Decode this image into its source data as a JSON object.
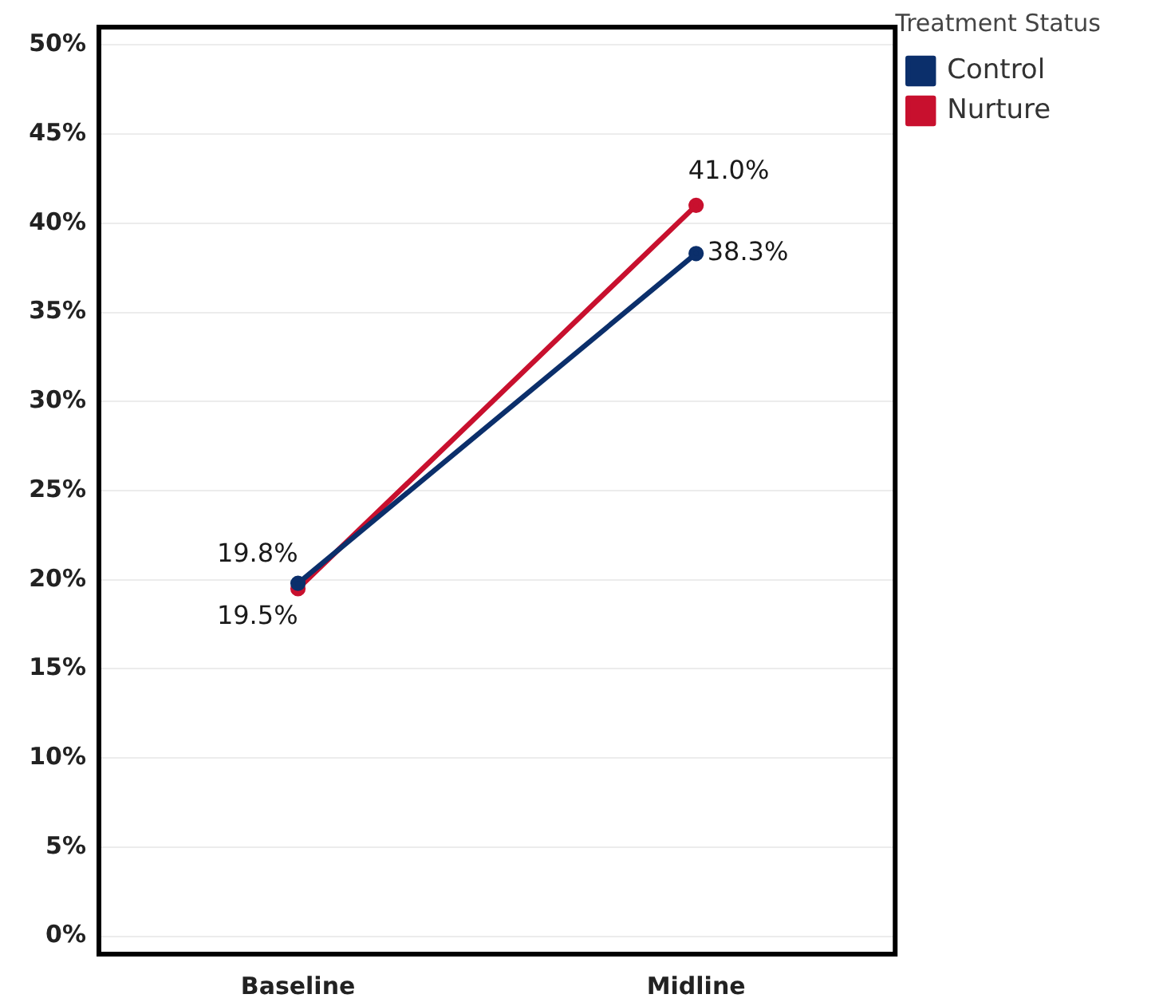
{
  "chart_data": {
    "type": "line",
    "legend_title": "Treatment Status",
    "categories": [
      "Baseline",
      "Midline"
    ],
    "series": [
      {
        "name": "Control",
        "color": "#0b2f6b",
        "values": [
          19.8,
          38.3
        ],
        "value_labels": [
          "19.8%",
          "38.3%"
        ]
      },
      {
        "name": "Nurture",
        "color": "#c8102e",
        "values": [
          19.5,
          41.0
        ],
        "value_labels": [
          "19.5%",
          "41.0%"
        ]
      }
    ],
    "ylim": [
      -1,
      51
    ],
    "yticks": [
      {
        "value": 0,
        "label": "0%"
      },
      {
        "value": 5,
        "label": "5%"
      },
      {
        "value": 10,
        "label": "10%"
      },
      {
        "value": 15,
        "label": "15%"
      },
      {
        "value": 20,
        "label": "20%"
      },
      {
        "value": 25,
        "label": "25%"
      },
      {
        "value": 30,
        "label": "30%"
      },
      {
        "value": 35,
        "label": "35%"
      },
      {
        "value": 40,
        "label": "40%"
      },
      {
        "value": 45,
        "label": "45%"
      },
      {
        "value": 50,
        "label": "50%"
      }
    ],
    "grid": "y",
    "legend": "top right",
    "marker": "circle",
    "line_style": "solid"
  }
}
